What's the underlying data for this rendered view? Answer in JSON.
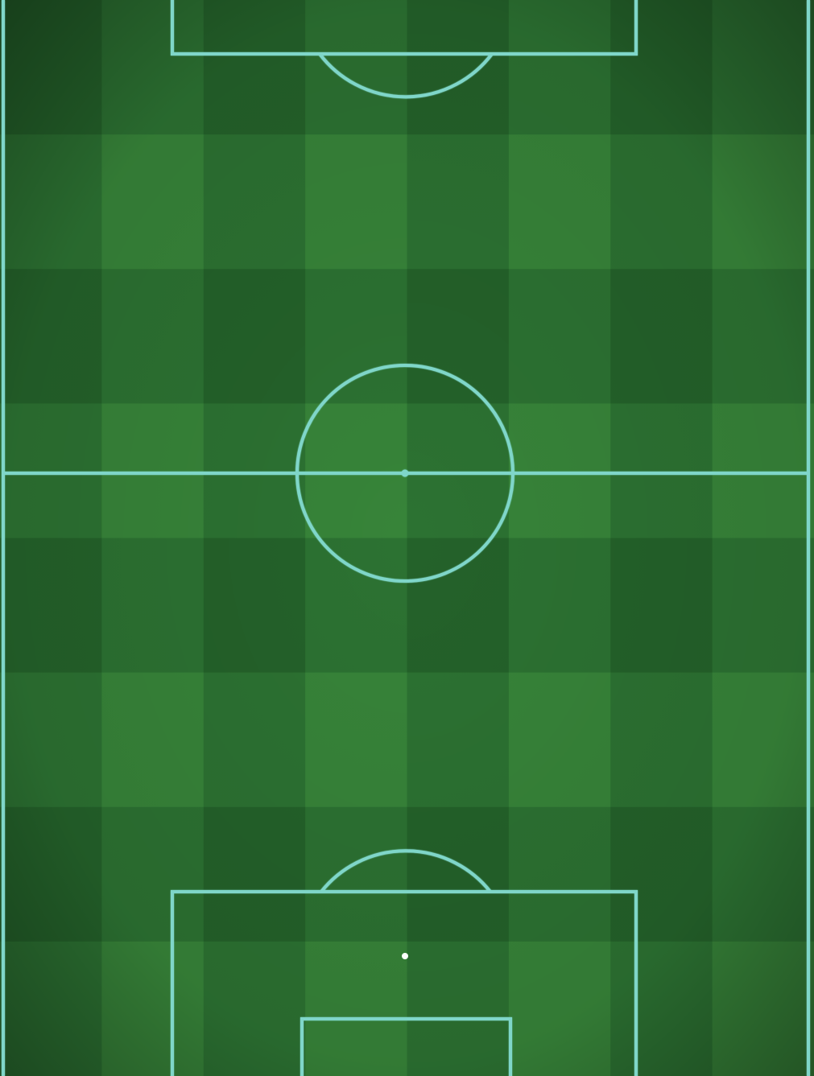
{
  "pitch": {
    "orientation": "vertical",
    "view": "top-down",
    "line_color": "#7fd6c9",
    "grass_colors": {
      "dark": "#23602a",
      "mid": "#2d7433",
      "light": "#3a8a3c"
    },
    "texture": "mowed-stripes-checkered",
    "markings": [
      "touchline-left",
      "touchline-right",
      "halfway-line",
      "center-circle",
      "center-spot",
      "penalty-box-top",
      "penalty-arc-top",
      "penalty-box-bottom",
      "goal-area-bottom",
      "penalty-spot-bottom",
      "penalty-arc-bottom"
    ]
  }
}
